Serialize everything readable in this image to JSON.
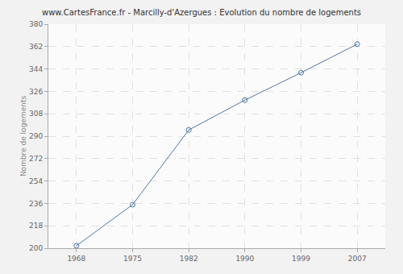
{
  "chart_data": {
    "type": "line",
    "title": "www.CartesFrance.fr - Marcilly-d'Azergues : Evolution du nombre de logements",
    "y_label": "Nombre de logements",
    "categories": [
      "1968",
      "1975",
      "1982",
      "1990",
      "1999",
      "2007"
    ],
    "values": [
      202,
      235,
      295,
      319,
      341,
      364
    ],
    "color": "#4f77a6",
    "marker": "circle-open",
    "line_style": "solid",
    "ylim": [
      200,
      380
    ],
    "yticks": [
      200,
      218,
      236,
      254,
      272,
      290,
      308,
      326,
      344,
      362,
      380
    ],
    "grid": true
  }
}
